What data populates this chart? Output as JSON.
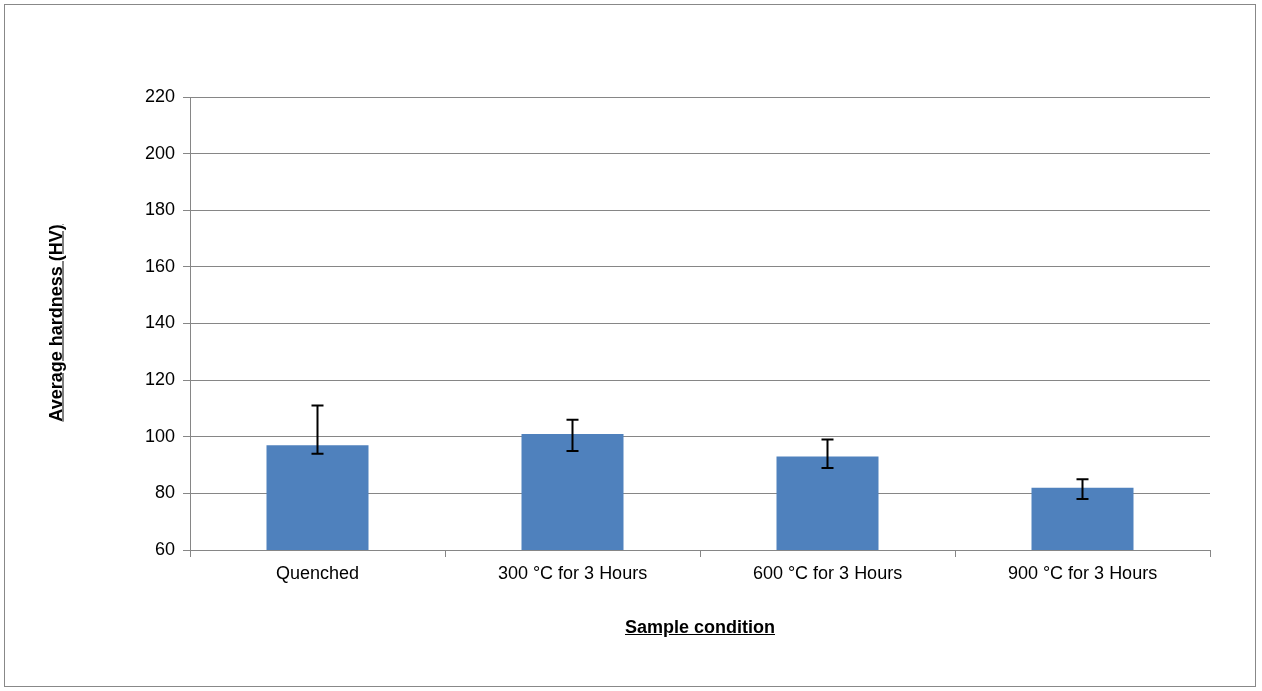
{
  "chart_data": {
    "type": "bar",
    "xlabel": "Sample condition",
    "ylabel": "Average hardness (HV)",
    "categories": [
      "Quenched",
      "300 °C for 3 Hours",
      "600 °C for 3 Hours",
      "900 °C for 3 Hours"
    ],
    "values": [
      97,
      101,
      93,
      82
    ],
    "errors": [
      [
        94,
        111
      ],
      [
        95,
        106
      ],
      [
        89,
        99
      ],
      [
        78,
        85
      ]
    ],
    "color": "#4f81bd",
    "ylim": [
      60,
      220
    ],
    "yticks": [
      60,
      80,
      100,
      120,
      140,
      160,
      180,
      200,
      220
    ],
    "grid": "y",
    "legend": false
  }
}
